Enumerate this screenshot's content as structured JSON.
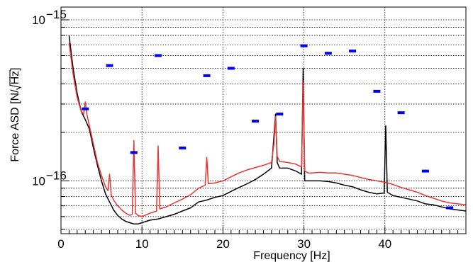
{
  "chart_data": {
    "type": "line",
    "title": "",
    "xlabel": "Frequency [Hz]",
    "ylabel_prefix": "Force ASD [N/",
    "ylabel_radicand": "Hz",
    "ylabel_suffix": "]",
    "xlim": [
      0,
      50
    ],
    "ylim": [
      4.7e-17,
      1.2e-15
    ],
    "yscale": "log",
    "grid": true,
    "x_ticks": [
      {
        "value": 0,
        "label": "0"
      },
      {
        "value": 10,
        "label": "10"
      },
      {
        "value": 20,
        "label": "20"
      },
      {
        "value": 30,
        "label": "30"
      },
      {
        "value": 40,
        "label": "40"
      }
    ],
    "y_ticks": [
      {
        "value": 1e-16,
        "base": "10",
        "exponent": "−16"
      },
      {
        "value": 1e-15,
        "base": "10",
        "exponent": "−15"
      }
    ],
    "series": [
      {
        "color": "#000000",
        "x": [
          1,
          1.5,
          2,
          2.5,
          3,
          3.5,
          4,
          4.5,
          5,
          5.5,
          6,
          6.5,
          7,
          7.5,
          8,
          8.5,
          9,
          9.5,
          10,
          11,
          12,
          13,
          14,
          15,
          16,
          17,
          18,
          19,
          20,
          21,
          22,
          23,
          24,
          25,
          26,
          26.3,
          26.5,
          26.7,
          27,
          28,
          29,
          29.7,
          29.9,
          30.1,
          30.5,
          31,
          32,
          33,
          34,
          35,
          36,
          37,
          38,
          39,
          39.9,
          40.1,
          40.3,
          41,
          42,
          43,
          44,
          45,
          46,
          47,
          48,
          49,
          50
        ],
        "y": [
          8e-16,
          5e-16,
          3.5e-16,
          2.7e-16,
          2.4e-16,
          2.1e-16,
          1.6e-16,
          1.25e-16,
          1e-16,
          8.3e-17,
          7.4e-17,
          6.6e-17,
          6.1e-17,
          5.8e-17,
          5.6e-17,
          5.5e-17,
          5.4e-17,
          5.4e-17,
          5.5e-17,
          5.7e-17,
          5.8e-17,
          6e-17,
          6.2e-17,
          6.5e-17,
          6.8e-17,
          7.4e-17,
          7.6e-17,
          7.9e-17,
          8.1e-17,
          8.6e-17,
          9.1e-17,
          9.6e-17,
          1.02e-16,
          1.1e-16,
          1.2e-16,
          1.9e-16,
          2.6e-16,
          1.3e-16,
          1.2e-16,
          1.2e-16,
          1.15e-16,
          1.1e-16,
          5e-16,
          1e-16,
          1e-16,
          1e-16,
          1e-16,
          9.9e-17,
          9.7e-17,
          9.4e-17,
          9.2e-17,
          8.8e-17,
          8.5e-17,
          8.3e-17,
          8.4e-17,
          2.2e-16,
          8.5e-17,
          8.1e-17,
          7.9e-17,
          7.7e-17,
          7.5e-17,
          7.2e-17,
          7.1e-17,
          6.9e-17,
          6.7e-17,
          6.6e-17,
          6.5e-17
        ]
      },
      {
        "color": "#ee3333",
        "x": [
          1,
          1.5,
          2,
          2.5,
          2.8,
          3,
          3.2,
          3.5,
          4,
          4.5,
          5,
          5.5,
          5.8,
          6,
          6.2,
          6.5,
          7,
          7.5,
          8,
          8.5,
          8.8,
          9,
          9.2,
          9.5,
          10,
          11,
          11.8,
          12,
          12.2,
          13,
          14,
          15,
          16,
          17,
          17.8,
          18,
          18.2,
          19,
          20,
          21,
          22,
          23,
          24,
          25,
          26,
          26.3,
          26.5,
          26.7,
          27,
          28,
          29,
          29.7,
          29.9,
          30.1,
          30.5,
          31,
          32,
          33,
          34,
          35,
          36,
          37,
          38,
          39,
          40,
          41,
          42,
          43,
          44,
          45,
          46,
          47,
          48,
          49,
          50
        ],
        "y": [
          7.2e-16,
          4.6e-16,
          3.3e-16,
          2.7e-16,
          2.6e-16,
          3.1e-16,
          2.6e-16,
          2.2e-16,
          1.7e-16,
          1.3e-16,
          1.08e-16,
          9.2e-17,
          8.7e-17,
          1.1e-16,
          8.2e-17,
          7.6e-17,
          7e-17,
          6.6e-17,
          6.3e-17,
          6.1e-17,
          6.2e-17,
          1.78e-16,
          6.3e-17,
          6.1e-17,
          6e-17,
          6.3e-17,
          6.5e-17,
          1.65e-16,
          6.7e-17,
          6.9e-17,
          7.3e-17,
          7.7e-17,
          8.2e-17,
          9e-17,
          9.4e-17,
          1.4e-16,
          9.6e-17,
          9.7e-17,
          1e-16,
          1.06e-16,
          1.12e-16,
          1.17e-16,
          1.21e-16,
          1.25e-16,
          1.3e-16,
          1.7e-16,
          2.5e-16,
          1.42e-16,
          1.32e-16,
          1.3e-16,
          1.27e-16,
          1.22e-16,
          4.1e-16,
          1.15e-16,
          1.12e-16,
          1.12e-16,
          1.13e-16,
          1.12e-16,
          1.12e-16,
          1.1e-16,
          1.08e-16,
          1.05e-16,
          1.02e-16,
          1e-16,
          9.8e-17,
          9.5e-17,
          9.1e-17,
          8.8e-17,
          8.5e-17,
          8.1e-17,
          7.8e-17,
          7.5e-17,
          7.3e-17,
          7.2e-17,
          7.1e-17
        ]
      },
      {
        "color": "#0000ee",
        "type": "markers",
        "x": [
          3,
          6,
          9,
          12,
          15,
          18,
          21,
          24,
          27,
          30,
          33,
          36,
          39,
          42,
          45,
          48
        ],
        "y": [
          2.8e-16,
          5.2e-16,
          1.5e-16,
          6e-16,
          1.6e-16,
          4.5e-16,
          5e-16,
          2.35e-16,
          2.6e-16,
          6.9e-16,
          6.2e-16,
          6.4e-16,
          3.6e-16,
          2.65e-16,
          1.15e-16,
          6.8e-17
        ]
      }
    ]
  }
}
